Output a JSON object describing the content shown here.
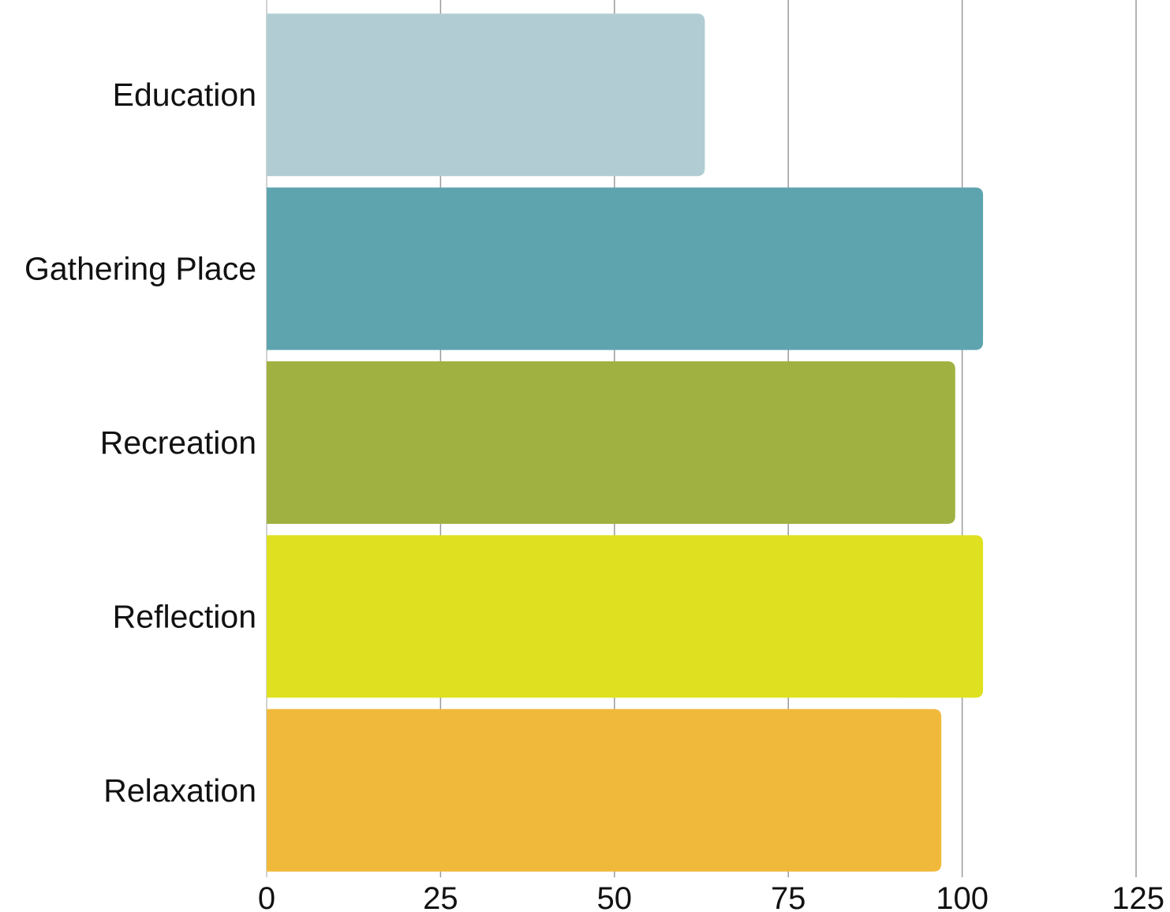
{
  "chart_data": {
    "type": "bar",
    "orientation": "horizontal",
    "categories": [
      "Education",
      "Gathering Place",
      "Recreation",
      "Reflection",
      "Relaxation"
    ],
    "values": [
      63,
      103,
      99,
      103,
      97
    ],
    "colors": [
      "#b1cdd3",
      "#5ea4af",
      "#a1b141",
      "#dfe01f",
      "#f1b93c"
    ],
    "xlim": [
      0,
      125
    ],
    "xticks": [
      0,
      25,
      50,
      75,
      100,
      125
    ],
    "xtick_labels": [
      "0",
      "25",
      "50",
      "75",
      "100",
      "125"
    ],
    "grid": true,
    "legend": "none"
  }
}
